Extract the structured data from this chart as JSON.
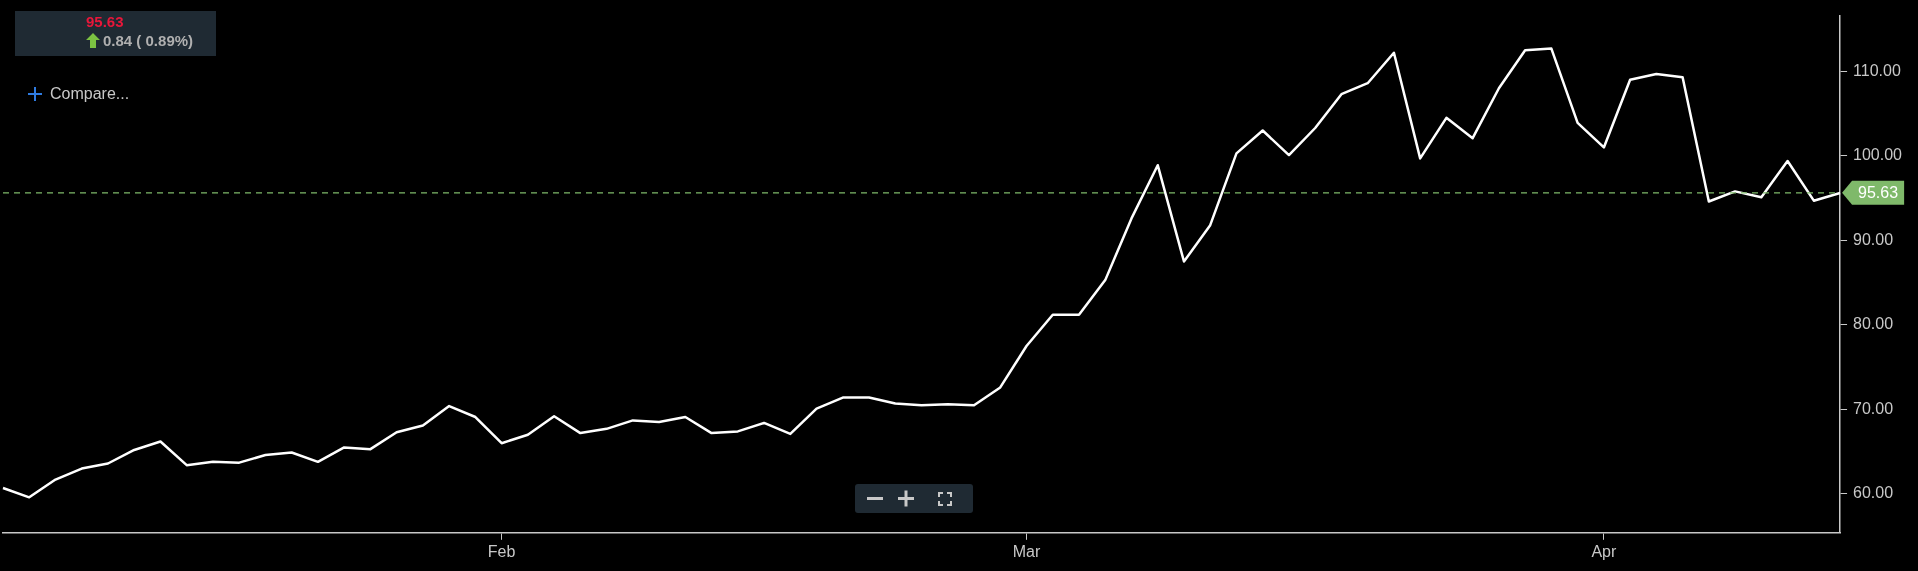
{
  "chart_data": {
    "type": "line",
    "categories": [
      null,
      null,
      null,
      null,
      null,
      null,
      null,
      null,
      null,
      null,
      null,
      null,
      null,
      null,
      null,
      null,
      null,
      null,
      null,
      "Feb",
      null,
      null,
      null,
      null,
      null,
      null,
      null,
      null,
      null,
      null,
      null,
      null,
      null,
      null,
      null,
      null,
      null,
      null,
      null,
      "Mar",
      null,
      null,
      null,
      null,
      null,
      null,
      null,
      null,
      null,
      null,
      null,
      null,
      null,
      null,
      null,
      null,
      null,
      null,
      null,
      null,
      null,
      "Apr",
      null,
      null,
      null,
      null,
      null,
      null,
      null,
      null,
      null
    ],
    "series": [
      {
        "color": "#ffffff",
        "values": [
          60.7,
          59.6,
          61.7,
          63.0,
          63.6,
          65.2,
          66.2,
          63.4,
          63.8,
          63.7,
          64.6,
          64.9,
          63.8,
          65.5,
          65.3,
          67.3,
          68.1,
          70.4,
          69.1,
          66.0,
          67.0,
          69.2,
          67.2,
          67.7,
          68.7,
          68.5,
          69.1,
          67.2,
          67.4,
          68.4,
          67.1,
          70.1,
          71.4,
          71.4,
          70.7,
          70.5,
          70.6,
          70.5,
          72.6,
          77.5,
          81.2,
          81.2,
          85.3,
          92.6,
          98.9,
          87.5,
          91.8,
          100.3,
          103.0,
          100.1,
          103.3,
          107.3,
          108.6,
          112.2,
          99.7,
          104.5,
          102.1,
          108.0,
          112.5,
          112.7,
          103.9,
          101.0,
          109.0,
          109.7,
          109.3,
          94.6,
          95.8,
          95.1,
          99.4,
          94.7,
          95.6
        ]
      }
    ],
    "ylim": [
      55.4,
      116.6
    ],
    "yticks": [
      {
        "value": 60,
        "label": "60.00"
      },
      {
        "value": 70,
        "label": "70.00"
      },
      {
        "value": 80,
        "label": "80.00"
      },
      {
        "value": 90,
        "label": "90.00"
      },
      {
        "value": 100,
        "label": "100.00"
      },
      {
        "value": 110,
        "label": "110.00"
      }
    ],
    "ref_lines": [
      {
        "axis": "y",
        "value": 95.63,
        "label": "95.63",
        "color": "#7fb96a",
        "line_style": "dashed"
      }
    ],
    "annotations": [
      "95.63",
      "0.84 ( 0.89%)",
      "Compare..."
    ],
    "grid": false,
    "legend": false,
    "marker": "none",
    "line_style": "solid"
  }
}
